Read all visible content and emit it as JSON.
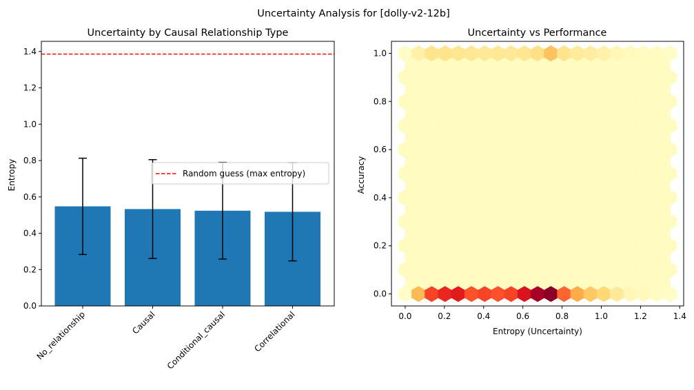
{
  "suptitle": "Uncertainty Analysis for [dolly-v2-12b]",
  "chart_data": [
    {
      "type": "bar",
      "title": "Uncertainty by Causal Relationship Type",
      "xlabel": "",
      "ylabel": "Entropy",
      "categories": [
        "No_relationship",
        "Causal",
        "Conditional_causal",
        "Correlational"
      ],
      "values": [
        0.548,
        0.533,
        0.524,
        0.518
      ],
      "errors": [
        0.265,
        0.272,
        0.266,
        0.27
      ],
      "ylim": [
        0,
        1.456
      ],
      "yticks": [
        "0.0",
        "0.2",
        "0.4",
        "0.6",
        "0.8",
        "1.0",
        "1.2",
        "1.4"
      ],
      "bar_color": "#1f77b4",
      "hline": {
        "y": 1.386,
        "label": "Random guess (max entropy)",
        "color": "#ff0000"
      },
      "legend_position": "center-right",
      "grid": false
    },
    {
      "type": "hexbin",
      "title": "Uncertainty vs Performance",
      "xlabel": "Entropy (Uncertainty)",
      "ylabel": "Accuracy",
      "xlim": [
        -0.07,
        1.42
      ],
      "ylim": [
        -0.05,
        1.05
      ],
      "xticks": [
        "0.0",
        "0.2",
        "0.4",
        "0.6",
        "0.8",
        "1.0",
        "1.2",
        "1.4"
      ],
      "yticks": [
        "0.0",
        "0.2",
        "0.4",
        "0.6",
        "0.8",
        "1.0"
      ],
      "colormap": "YlOrRd",
      "gridsize": 20,
      "bins_accuracy_0": {
        "entropy": [
          0.0,
          0.068,
          0.135,
          0.203,
          0.27,
          0.338,
          0.405,
          0.473,
          0.54,
          0.608,
          0.675,
          0.743,
          0.81,
          0.878,
          0.945,
          1.013,
          1.08,
          1.148,
          1.215,
          1.283,
          1.35
        ],
        "density": [
          0.02,
          0.35,
          0.65,
          0.72,
          0.75,
          0.62,
          0.65,
          0.62,
          0.65,
          0.78,
          0.92,
          0.98,
          0.58,
          0.4,
          0.3,
          0.25,
          0.15,
          0.06,
          0.04,
          0.03,
          0.02
        ]
      },
      "bins_accuracy_1": {
        "entropy": [
          0.0,
          0.068,
          0.135,
          0.203,
          0.27,
          0.338,
          0.405,
          0.473,
          0.54,
          0.608,
          0.675,
          0.743,
          0.81,
          0.878,
          0.945,
          1.013,
          1.08,
          1.148,
          1.215,
          1.283,
          1.35
        ],
        "density": [
          0.02,
          0.1,
          0.18,
          0.18,
          0.17,
          0.16,
          0.15,
          0.16,
          0.15,
          0.17,
          0.2,
          0.32,
          0.18,
          0.14,
          0.12,
          0.1,
          0.06,
          0.04,
          0.03,
          0.03,
          0.02
        ]
      },
      "background_density": 0.03,
      "grid": false
    }
  ]
}
